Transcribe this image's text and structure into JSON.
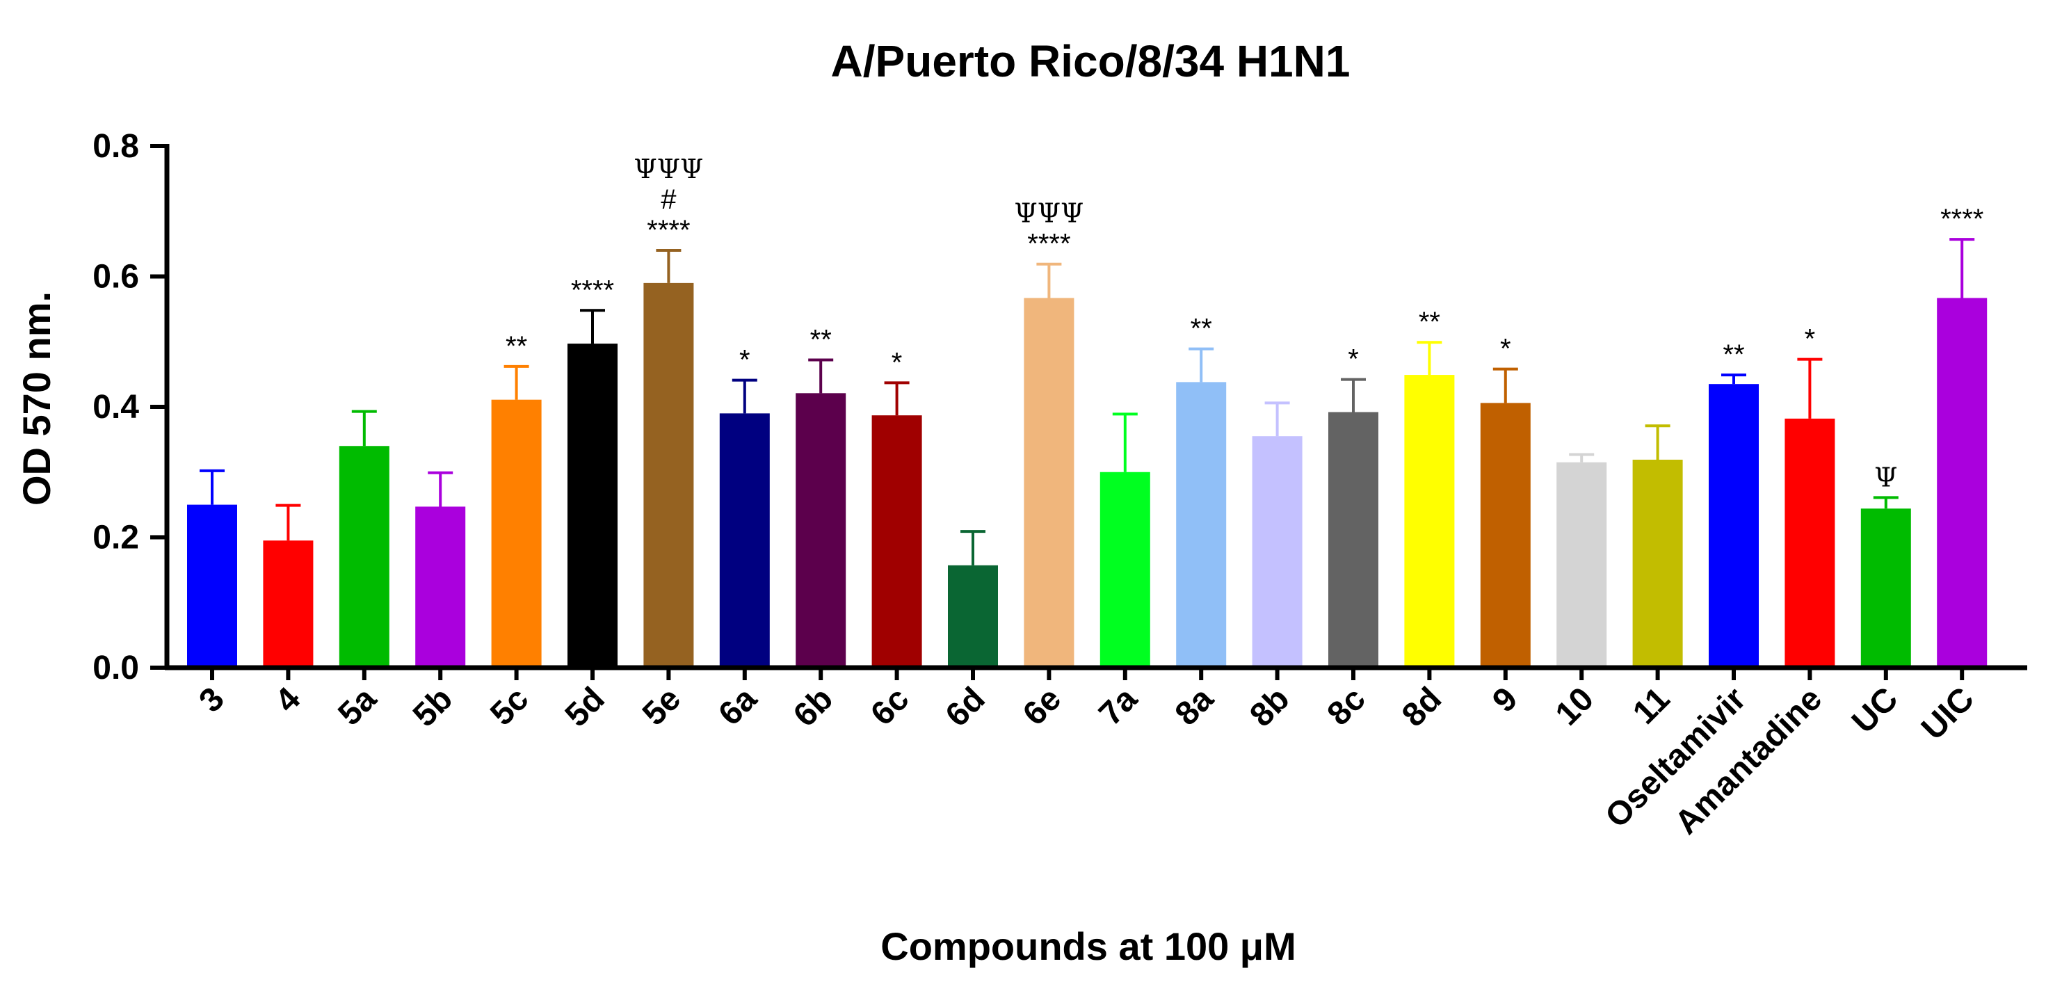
{
  "chart_data": {
    "type": "bar",
    "title": "A/Puerto Rico/8/34 H1N1",
    "xlabel": "Compounds at 100 μM",
    "ylabel": "OD 570 nm.",
    "ylim": [
      0,
      0.8
    ],
    "yticks": [
      0.0,
      0.2,
      0.4,
      0.6,
      0.8
    ],
    "ytick_labels": [
      "0.0",
      "0.2",
      "0.4",
      "0.6",
      "0.8"
    ],
    "grid": false,
    "legend": "none",
    "categories": [
      "3",
      "4",
      "5a",
      "5b",
      "5c",
      "5d",
      "5e",
      "6a",
      "6b",
      "6c",
      "6d",
      "6e",
      "7a",
      "8a",
      "8b",
      "8c",
      "8d",
      "9",
      "10",
      "11",
      "Oseltamivir",
      "Amantadine",
      "UC",
      "UIC"
    ],
    "values": [
      0.25,
      0.195,
      0.34,
      0.247,
      0.411,
      0.497,
      0.59,
      0.39,
      0.421,
      0.387,
      0.157,
      0.567,
      0.3,
      0.438,
      0.355,
      0.392,
      0.449,
      0.406,
      0.315,
      0.319,
      0.435,
      0.382,
      0.244,
      0.567
    ],
    "errors": [
      0.052,
      0.054,
      0.053,
      0.052,
      0.051,
      0.051,
      0.05,
      0.051,
      0.051,
      0.05,
      0.052,
      0.052,
      0.089,
      0.051,
      0.051,
      0.05,
      0.05,
      0.052,
      0.012,
      0.052,
      0.014,
      0.091,
      0.017,
      0.09
    ],
    "colors": [
      "#0000ff",
      "#ff0000",
      "#00bb00",
      "#aa00dd",
      "#ff8000",
      "#000000",
      "#956221",
      "#000080",
      "#5c004c",
      "#a00000",
      "#0a6633",
      "#f0b67c",
      "#00ff20",
      "#90bff7",
      "#c4c1ff",
      "#636363",
      "#ffff00",
      "#c06000",
      "#d4d4d4",
      "#c2bd00",
      "#0000ff",
      "#ff0000",
      "#00bb00",
      "#aa00dd"
    ],
    "annotations": [
      [],
      [],
      [],
      [],
      [
        "**"
      ],
      [
        "****"
      ],
      [
        "****",
        "#",
        "ΨΨΨ"
      ],
      [
        "*"
      ],
      [
        "**"
      ],
      [
        "*"
      ],
      [],
      [
        "****",
        "ΨΨΨ"
      ],
      [],
      [
        "**"
      ],
      [],
      [
        "*"
      ],
      [
        "**"
      ],
      [
        "*"
      ],
      [],
      [],
      [
        "**"
      ],
      [
        "*"
      ],
      [
        "Ψ"
      ],
      [
        "****"
      ]
    ]
  }
}
